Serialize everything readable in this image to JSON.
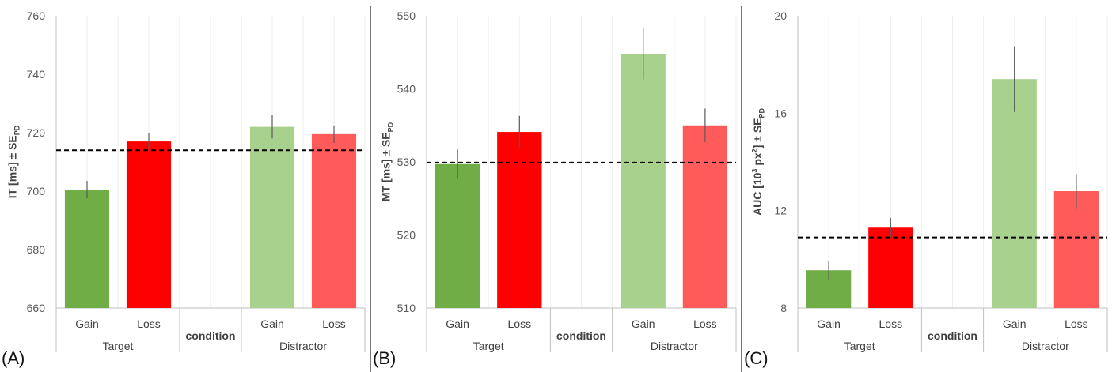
{
  "chart_data": [
    {
      "type": "bar",
      "panel_label": "(A)",
      "ylabel": {
        "main": "IT [ms] ± SE",
        "sub": "PD"
      },
      "ylim": [
        660,
        760
      ],
      "yticks": [
        660,
        680,
        700,
        720,
        740,
        760
      ],
      "groups": [
        {
          "label": "Target",
          "categories": [
            "Gain",
            "Loss"
          ]
        },
        {
          "label": "condition",
          "categories": []
        },
        {
          "label": "Distractor",
          "categories": [
            "Gain",
            "Loss"
          ]
        }
      ],
      "bars": [
        {
          "group": "Target",
          "category": "Gain",
          "value": 700.5,
          "error": 3,
          "color": "#70ad47"
        },
        {
          "group": "Target",
          "category": "Loss",
          "value": 717,
          "error": 3,
          "color": "#ff0000"
        },
        {
          "group": "Distractor",
          "category": "Gain",
          "value": 722,
          "error": 4,
          "color": "#a9d18e"
        },
        {
          "group": "Distractor",
          "category": "Loss",
          "value": 719.5,
          "error": 3,
          "color": "#ff5b5b"
        }
      ],
      "reference_line": 714,
      "grid": "vertical"
    },
    {
      "type": "bar",
      "panel_label": "(B)",
      "ylabel": {
        "main": "MT [ms] ± SE",
        "sub": "PD"
      },
      "ylim": [
        510,
        550
      ],
      "yticks": [
        510,
        520,
        530,
        540,
        550
      ],
      "groups": [
        {
          "label": "Target",
          "categories": [
            "Gain",
            "Loss"
          ]
        },
        {
          "label": "condition",
          "categories": []
        },
        {
          "label": "Distractor",
          "categories": [
            "Gain",
            "Loss"
          ]
        }
      ],
      "bars": [
        {
          "group": "Target",
          "category": "Gain",
          "value": 529.7,
          "error": 2,
          "color": "#70ad47"
        },
        {
          "group": "Target",
          "category": "Loss",
          "value": 534.1,
          "error": 2.2,
          "color": "#ff0000"
        },
        {
          "group": "Distractor",
          "category": "Gain",
          "value": 544.8,
          "error": 3.5,
          "color": "#a9d18e"
        },
        {
          "group": "Distractor",
          "category": "Loss",
          "value": 535,
          "error": 2.3,
          "color": "#ff5b5b"
        }
      ],
      "reference_line": 529.9,
      "grid": "vertical"
    },
    {
      "type": "bar",
      "panel_label": "(C)",
      "ylabel": {
        "main": "AUC [10",
        "sup1": "3",
        "mid": " px",
        "sup2": "2",
        "end": "] ± SE",
        "sub": "PD"
      },
      "ylim": [
        8,
        20
      ],
      "yticks": [
        8,
        12,
        16,
        20
      ],
      "groups": [
        {
          "label": "Target",
          "categories": [
            "Gain",
            "Loss"
          ]
        },
        {
          "label": "condition",
          "categories": []
        },
        {
          "label": "Distractor",
          "categories": [
            "Gain",
            "Loss"
          ]
        }
      ],
      "bars": [
        {
          "group": "Target",
          "category": "Gain",
          "value": 9.55,
          "error": 0.4,
          "color": "#70ad47"
        },
        {
          "group": "Target",
          "category": "Loss",
          "value": 11.3,
          "error": 0.4,
          "color": "#ff0000"
        },
        {
          "group": "Distractor",
          "category": "Gain",
          "value": 17.4,
          "error": 1.35,
          "color": "#a9d18e"
        },
        {
          "group": "Distractor",
          "category": "Loss",
          "value": 12.8,
          "error": 0.7,
          "color": "#ff5b5b"
        }
      ],
      "reference_line": 10.9,
      "grid": "vertical"
    }
  ]
}
